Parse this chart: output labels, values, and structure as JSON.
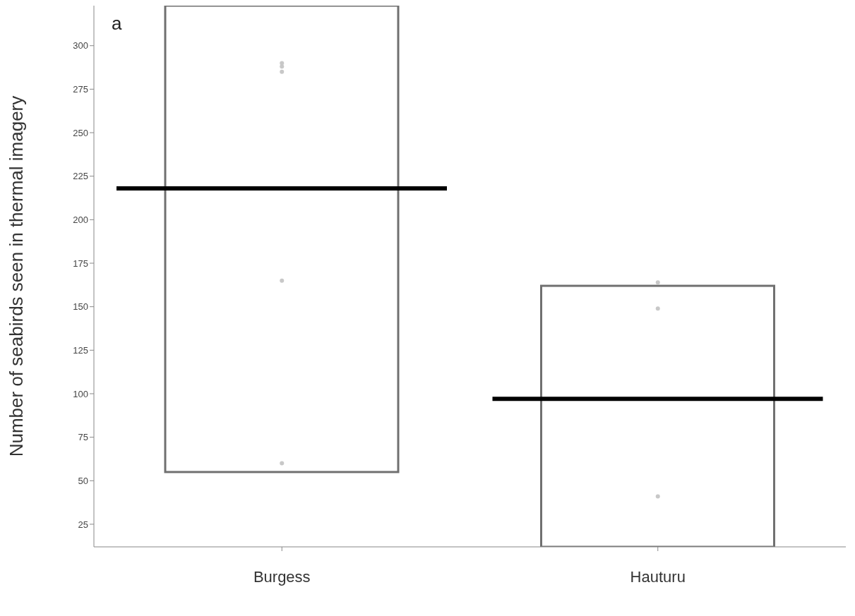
{
  "chart_data": {
    "type": "bar",
    "ylabel": "Number of seabirds seen in thermal imagery",
    "annotations": [
      "a"
    ],
    "categories": [
      "Burgess",
      "Hauturu"
    ],
    "ylim": [
      12,
      323
    ],
    "yticks": [
      25,
      50,
      75,
      100,
      125,
      150,
      175,
      200,
      225,
      250,
      275,
      300
    ],
    "series": [
      {
        "color": "#707070",
        "base": [
          55,
          12
        ],
        "values": [
          268,
          150
        ]
      },
      {
        "type": "bar",
        "color": "#000000",
        "base": [
          218,
          97
        ],
        "values": [
          0,
          0
        ]
      },
      {
        "type": "scatter",
        "color": "#c8c8c8",
        "marker": "circle",
        "x": [
          "Burgess",
          "Burgess",
          "Burgess",
          "Burgess",
          "Burgess",
          "Hauturu",
          "Hauturu",
          "Hauturu"
        ],
        "values": [
          288,
          290,
          285,
          165,
          60,
          164,
          149,
          41
        ]
      }
    ]
  }
}
